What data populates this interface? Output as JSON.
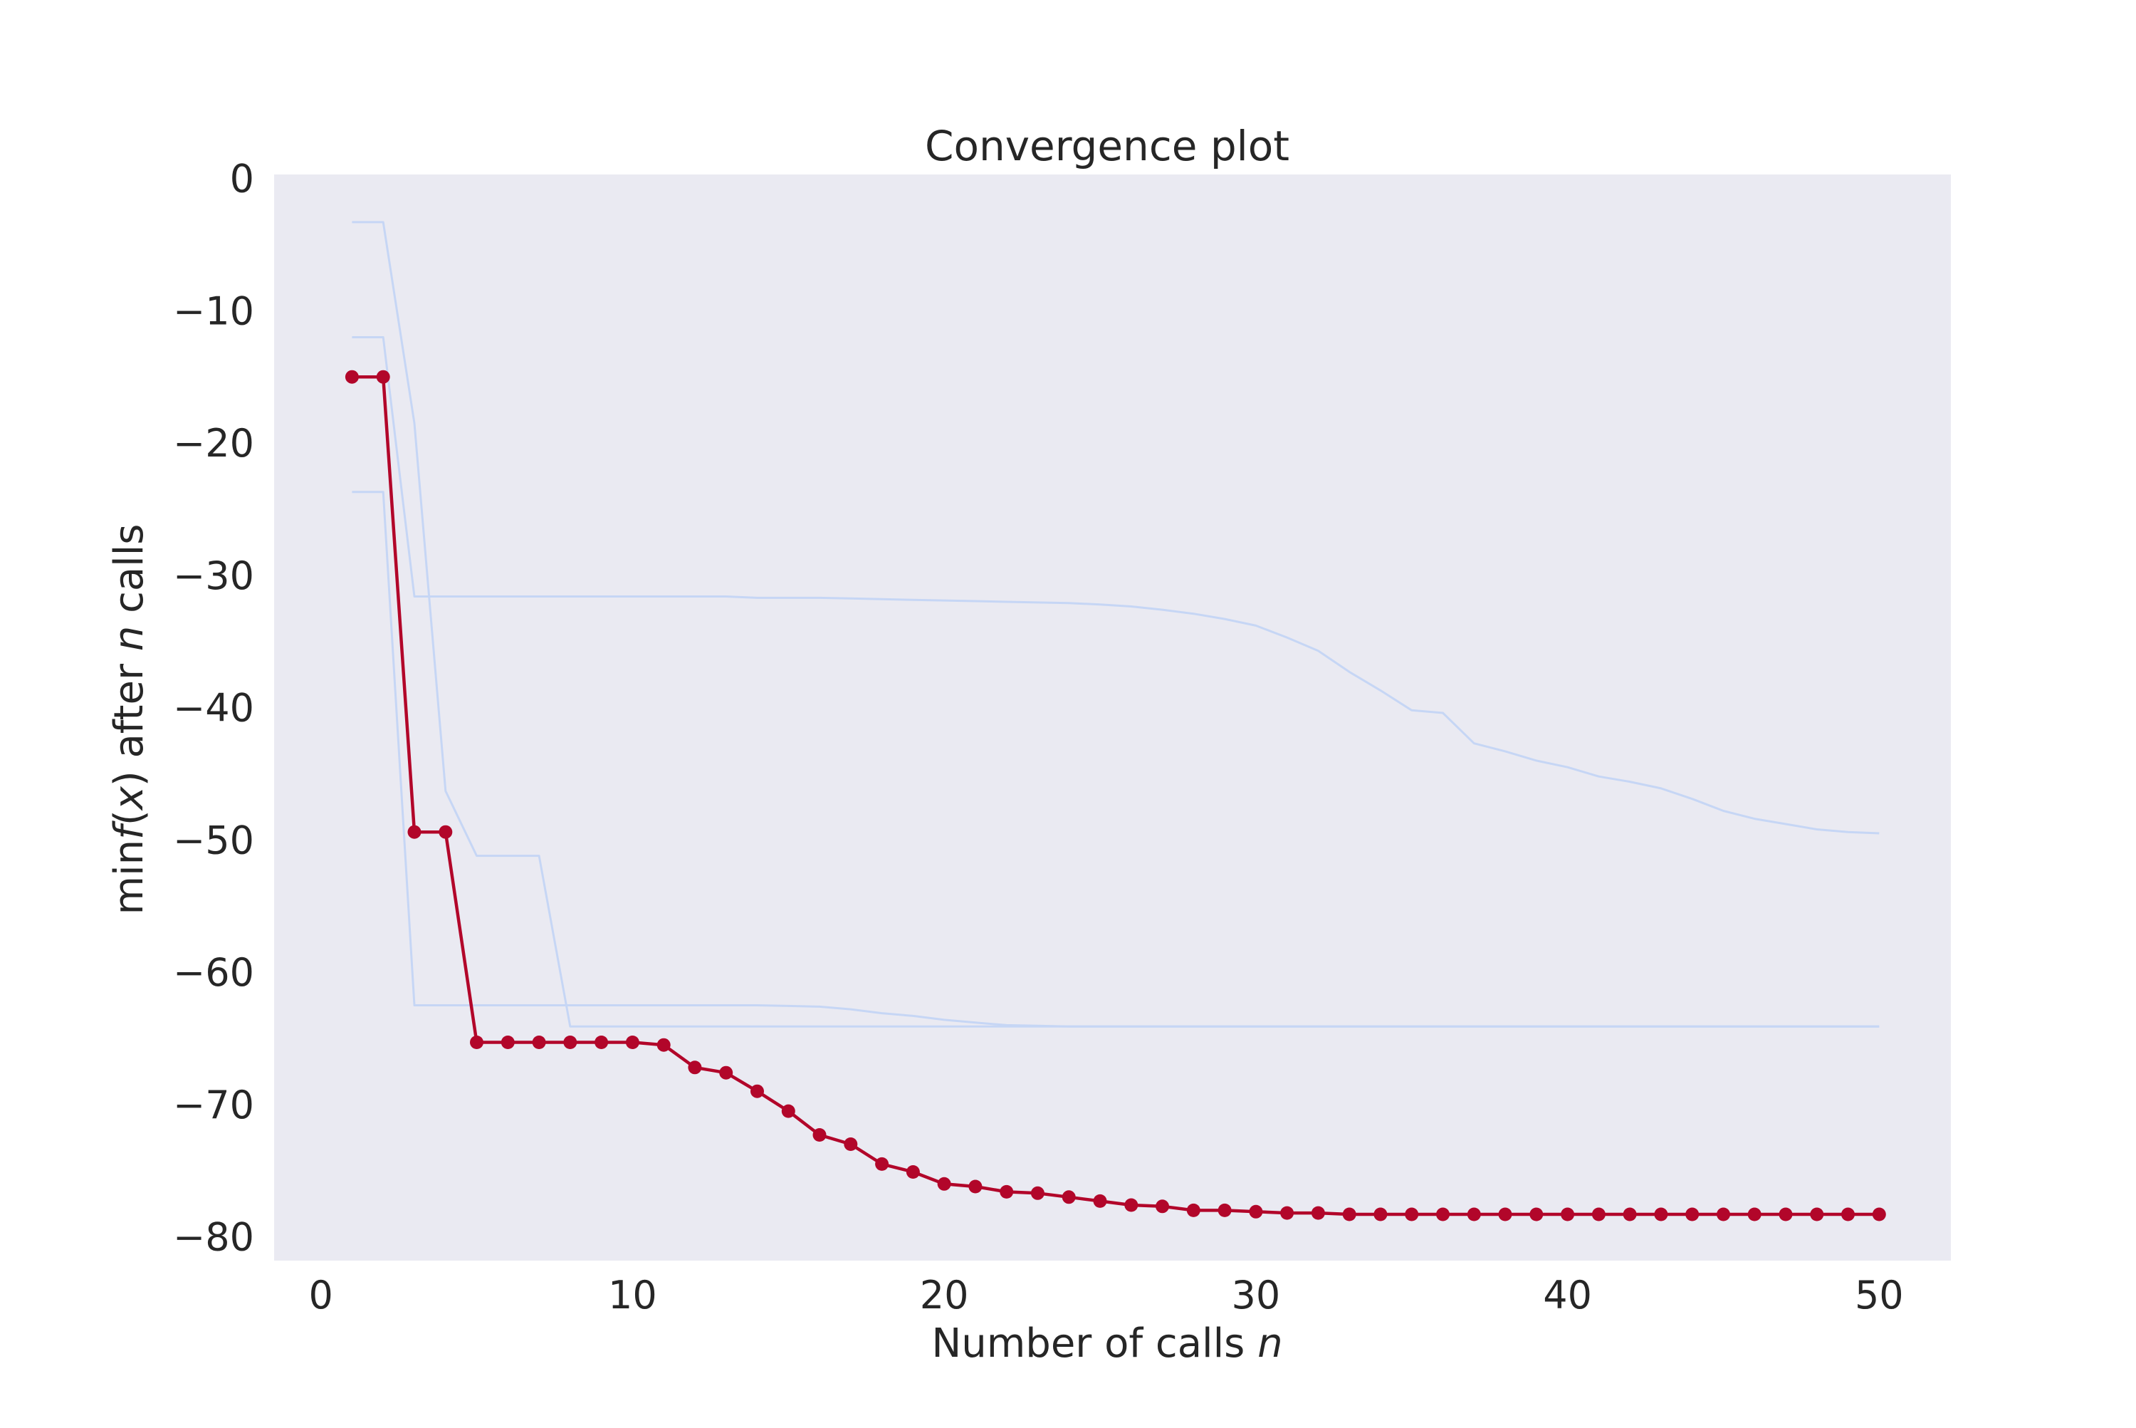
{
  "chart_data": {
    "type": "line",
    "title": "Convergence plot",
    "xlabel": {
      "prefix": "Number of calls ",
      "italic": "n"
    },
    "ylabel": {
      "p1": "min",
      "f": "f",
      "p2": "(",
      "x": "x",
      "p3": ")  after ",
      "n": "n",
      "p4": " calls"
    },
    "xlim": [
      -1.5,
      52.3
    ],
    "ylim": [
      -81.8,
      0.3
    ],
    "xticks": [
      0,
      10,
      20,
      30,
      40,
      50
    ],
    "yticks": [
      0,
      -10,
      -20,
      -30,
      -40,
      -50,
      -60,
      -70,
      -80
    ],
    "xtick_labels": [
      "0",
      "10",
      "20",
      "30",
      "40",
      "50"
    ],
    "ytick_labels": [
      "0",
      "−10",
      "−20",
      "−30",
      "−40",
      "−50",
      "−60",
      "−70",
      "−80"
    ],
    "grid": false,
    "background": "#eaeaf2",
    "main_series": {
      "color": "#b2062a",
      "x": [
        1,
        2,
        3,
        4,
        5,
        6,
        7,
        8,
        9,
        10,
        11,
        12,
        13,
        14,
        15,
        16,
        17,
        18,
        19,
        20,
        21,
        22,
        23,
        24,
        25,
        26,
        27,
        28,
        29,
        30,
        31,
        32,
        33,
        34,
        35,
        36,
        37,
        38,
        39,
        40,
        41,
        42,
        43,
        44,
        45,
        46,
        47,
        48,
        49,
        50
      ],
      "y": [
        -15.0,
        -15.0,
        -49.4,
        -49.4,
        -65.3,
        -65.3,
        -65.3,
        -65.3,
        -65.3,
        -65.3,
        -65.5,
        -67.2,
        -67.6,
        -69.0,
        -70.5,
        -72.3,
        -73.0,
        -74.5,
        -75.1,
        -76.0,
        -76.2,
        -76.6,
        -76.7,
        -77.0,
        -77.3,
        -77.6,
        -77.7,
        -78.0,
        -78.0,
        -78.1,
        -78.2,
        -78.2,
        -78.3,
        -78.3,
        -78.3,
        -78.3,
        -78.3,
        -78.3,
        -78.3,
        -78.3,
        -78.3,
        -78.3,
        -78.3,
        -78.3,
        -78.3,
        -78.3,
        -78.3,
        -78.3,
        -78.3,
        -78.3
      ]
    },
    "background_runs": [
      {
        "color": "#c6d6f5",
        "x": [
          1,
          2,
          3,
          4,
          5,
          6,
          7,
          8,
          9,
          10,
          11,
          12,
          13,
          14,
          15,
          16,
          17,
          18,
          19,
          20,
          21,
          22,
          23,
          24,
          25,
          26,
          27,
          28,
          29,
          30,
          31,
          32,
          33,
          34,
          35,
          36,
          37,
          38,
          39,
          40,
          41,
          42,
          43,
          44,
          45,
          46,
          47,
          48,
          49,
          50
        ],
        "y": [
          -3.3,
          -3.3,
          -18.5,
          -46.3,
          -51.2,
          -51.2,
          -51.2,
          -64.1,
          -64.1,
          -64.1,
          -64.1,
          -64.1,
          -64.1,
          -64.1,
          -64.1,
          -64.1,
          -64.1,
          -64.1,
          -64.1,
          -64.1,
          -64.1,
          -64.1,
          -64.1,
          -64.1,
          -64.1,
          -64.1,
          -64.1,
          -64.1,
          -64.1,
          -64.1,
          -64.1,
          -64.1,
          -64.1,
          -64.1,
          -64.1,
          -64.1,
          -64.1,
          -64.1,
          -64.1,
          -64.1,
          -64.1,
          -64.1,
          -64.1,
          -64.1,
          -64.1,
          -64.1,
          -64.1,
          -64.1,
          -64.1,
          -64.1
        ]
      },
      {
        "color": "#c6d6f5",
        "x": [
          1,
          2,
          3,
          4,
          5,
          6,
          7,
          8,
          9,
          10,
          11,
          12,
          13,
          14,
          15,
          16,
          17,
          18,
          19,
          20,
          21,
          22,
          23,
          24,
          25,
          26,
          27,
          28,
          29,
          30,
          31,
          32,
          33,
          34,
          35,
          36,
          37,
          38,
          39,
          40,
          41,
          42,
          43,
          44,
          45,
          46,
          47,
          48,
          49,
          50
        ],
        "y": [
          -12.0,
          -12.0,
          -31.6,
          -31.6,
          -31.6,
          -31.6,
          -31.6,
          -31.6,
          -31.6,
          -31.6,
          -31.6,
          -31.6,
          -31.6,
          -31.7,
          -31.7,
          -31.7,
          -31.75,
          -31.8,
          -31.85,
          -31.9,
          -31.95,
          -32.0,
          -32.05,
          -32.1,
          -32.2,
          -32.35,
          -32.6,
          -32.9,
          -33.3,
          -33.8,
          -34.7,
          -35.7,
          -37.3,
          -38.7,
          -40.2,
          -40.4,
          -42.7,
          -43.3,
          -44.0,
          -44.5,
          -45.2,
          -45.6,
          -46.1,
          -46.9,
          -47.8,
          -48.4,
          -48.8,
          -49.2,
          -49.4,
          -49.5
        ]
      },
      {
        "color": "#c6d6f5",
        "x": [
          1,
          2,
          3,
          4,
          5,
          6,
          7,
          8,
          9,
          10,
          11,
          12,
          13,
          14,
          15,
          16,
          17,
          18,
          19,
          20,
          21,
          22,
          23,
          24,
          25,
          26,
          27,
          28,
          29,
          30,
          31,
          32,
          33,
          34,
          35,
          36,
          37,
          38,
          39,
          40,
          41,
          42,
          43,
          44,
          45,
          46,
          47,
          48,
          49,
          50
        ],
        "y": [
          -23.7,
          -23.7,
          -62.5,
          -62.5,
          -62.5,
          -62.5,
          -62.5,
          -62.5,
          -62.5,
          -62.5,
          -62.5,
          -62.5,
          -62.5,
          -62.5,
          -62.55,
          -62.6,
          -62.8,
          -63.1,
          -63.3,
          -63.6,
          -63.8,
          -64.0,
          -64.05,
          -64.1,
          -64.1,
          -64.1,
          -64.1,
          -64.1,
          -64.1,
          -64.1,
          -64.1,
          -64.1,
          -64.1,
          -64.1,
          -64.1,
          -64.1,
          -64.1,
          -64.1,
          -64.1,
          -64.1,
          -64.1,
          -64.1,
          -64.1,
          -64.1,
          -64.1,
          -64.1,
          -64.1,
          -64.1,
          -64.1,
          -64.1
        ]
      }
    ]
  }
}
